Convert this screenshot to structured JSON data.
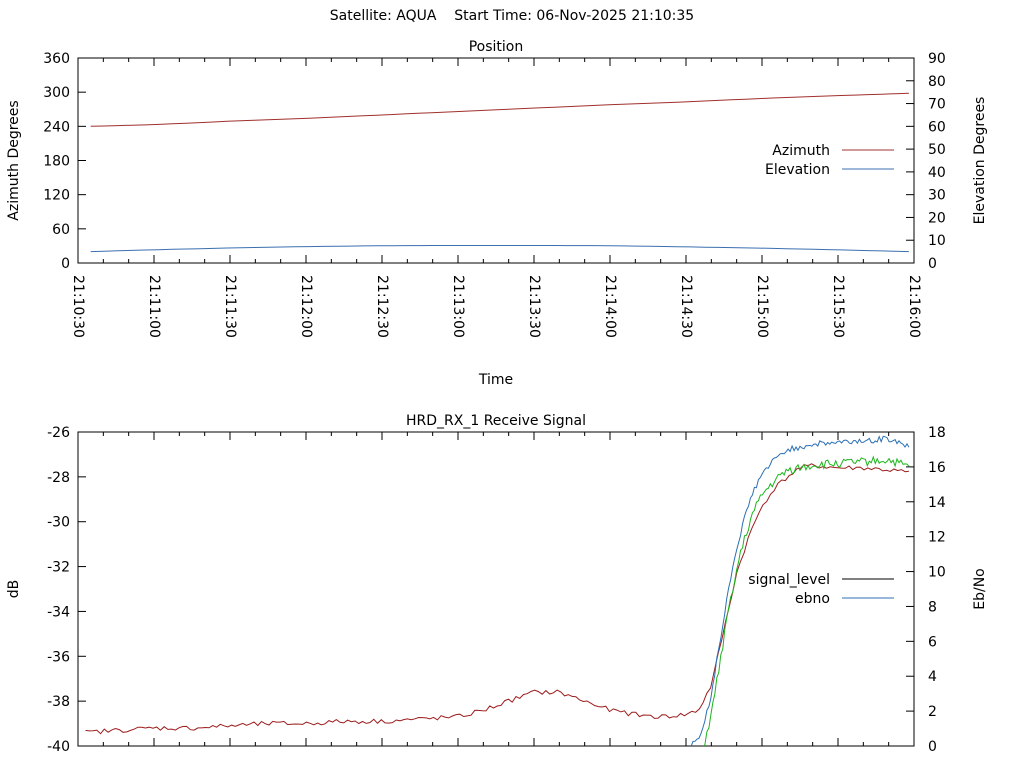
{
  "header": {
    "satellite_label": "Satellite: AQUA",
    "start_label": "Start Time: 06-Nov-2025 21:10:35"
  },
  "colors": {
    "azimuth": "#a0302d",
    "elevation": "#3b6fb0",
    "signal_level": "#000000",
    "signal_trace": "#9b1c1c",
    "ebno": "#2c6fb5",
    "ebno_partial": "#1bb51b",
    "axis": "#000000"
  },
  "chart_data": [
    {
      "type": "line",
      "title": "Position",
      "xlabel": "Time",
      "ylabel": "Azimuth Degrees",
      "y2label": "Elevation Degrees",
      "xlim": [
        "21:10:30",
        "21:16:00"
      ],
      "ylim": [
        0,
        360
      ],
      "y2lim": [
        0,
        90
      ],
      "yticks": [
        0,
        60,
        120,
        180,
        240,
        300,
        360
      ],
      "y2ticks": [
        0,
        10,
        20,
        30,
        40,
        50,
        60,
        70,
        80,
        90
      ],
      "xticks": [
        "21:10:30",
        "21:11:00",
        "21:11:30",
        "21:12:00",
        "21:12:30",
        "21:13:00",
        "21:13:30",
        "21:14:00",
        "21:14:30",
        "21:15:00",
        "21:15:30",
        "21:16:00"
      ],
      "legend_position": "right",
      "series": [
        {
          "name": "Azimuth",
          "axis": "left",
          "x": [
            "21:10:35",
            "21:11:00",
            "21:11:30",
            "21:12:00",
            "21:12:30",
            "21:13:00",
            "21:13:30",
            "21:14:00",
            "21:14:30",
            "21:15:00",
            "21:15:30",
            "21:15:58"
          ],
          "values": [
            240,
            243,
            249,
            254,
            260,
            266,
            272,
            278,
            283,
            289,
            294,
            298
          ]
        },
        {
          "name": "Elevation",
          "axis": "right",
          "x": [
            "21:10:35",
            "21:11:00",
            "21:11:30",
            "21:12:00",
            "21:12:30",
            "21:13:00",
            "21:13:30",
            "21:14:00",
            "21:14:30",
            "21:15:00",
            "21:15:30",
            "21:15:58"
          ],
          "values": [
            5.0,
            5.8,
            6.6,
            7.2,
            7.6,
            7.7,
            7.7,
            7.6,
            7.1,
            6.5,
            5.8,
            5.0
          ]
        }
      ]
    },
    {
      "type": "line",
      "title": "HRD_RX_1 Receive Signal",
      "ylabel": "dB",
      "y2label": "Eb/No",
      "xlim": [
        "21:10:30",
        "21:16:00"
      ],
      "ylim": [
        -40,
        -26
      ],
      "y2lim": [
        0,
        18
      ],
      "yticks": [
        -40,
        -38,
        -36,
        -34,
        -32,
        -30,
        -28,
        -26
      ],
      "y2ticks": [
        0,
        2,
        4,
        6,
        8,
        10,
        12,
        14,
        16,
        18
      ],
      "legend_position": "right",
      "series": [
        {
          "name": "signal_level",
          "axis": "left",
          "x": [
            "21:10:33",
            "21:10:45",
            "21:11:00",
            "21:11:15",
            "21:11:30",
            "21:11:45",
            "21:12:00",
            "21:12:15",
            "21:12:30",
            "21:12:45",
            "21:13:00",
            "21:13:10",
            "21:13:20",
            "21:13:30",
            "21:13:40",
            "21:13:50",
            "21:14:00",
            "21:14:10",
            "21:14:20",
            "21:14:30",
            "21:14:35",
            "21:14:40",
            "21:14:45",
            "21:14:50",
            "21:14:55",
            "21:15:00",
            "21:15:05",
            "21:15:10",
            "21:15:15",
            "21:15:20",
            "21:15:30",
            "21:15:40",
            "21:15:50",
            "21:15:58"
          ],
          "values": [
            -39.4,
            -39.3,
            -39.2,
            -39.2,
            -39.1,
            -39.0,
            -39.0,
            -38.9,
            -38.9,
            -38.8,
            -38.7,
            -38.4,
            -38.0,
            -37.6,
            -37.6,
            -38.0,
            -38.4,
            -38.6,
            -38.7,
            -38.6,
            -38.4,
            -37.3,
            -34.8,
            -32.3,
            -30.6,
            -29.3,
            -28.5,
            -28.0,
            -27.6,
            -27.5,
            -27.6,
            -27.6,
            -27.7,
            -27.8
          ]
        },
        {
          "name": "ebno",
          "axis": "right",
          "x": [
            "21:14:32",
            "21:14:36",
            "21:14:40",
            "21:14:44",
            "21:14:48",
            "21:14:52",
            "21:14:56",
            "21:15:00",
            "21:15:05",
            "21:15:10",
            "21:15:20",
            "21:15:30",
            "21:15:40",
            "21:15:50",
            "21:15:58"
          ],
          "values": [
            0.1,
            0.6,
            3.0,
            6.5,
            10.0,
            12.5,
            14.4,
            15.6,
            16.4,
            17.0,
            17.3,
            17.4,
            17.5,
            17.6,
            17.2
          ]
        }
      ]
    }
  ]
}
